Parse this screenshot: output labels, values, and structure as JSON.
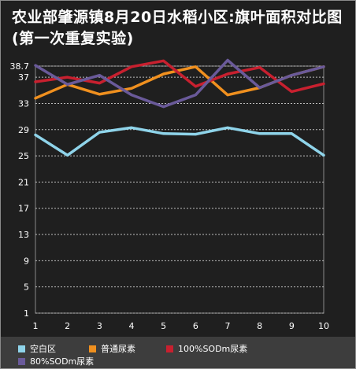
{
  "title": "农业部肇源镇8月20日水稻小区:旗叶面积对比图(第一次重复实验)",
  "chart_data": {
    "type": "line",
    "title": "农业部肇源镇8月20日水稻小区:旗叶面积对比图(第一次重复实验)",
    "x": [
      1,
      2,
      3,
      4,
      5,
      6,
      7,
      8,
      9,
      10
    ],
    "y_ticks": [
      "1",
      "5",
      "9",
      "13",
      "17",
      "21",
      "25",
      "29",
      "33",
      "37",
      "38.7"
    ],
    "y_tick_values": [
      1,
      5,
      9,
      13,
      17,
      21,
      25,
      29,
      33,
      37,
      38.7
    ],
    "ylim": [
      1,
      38.7
    ],
    "grid": true,
    "legend_position": "bottom",
    "series": [
      {
        "name": "空白区",
        "color": "#8fd4ea",
        "values": [
          28.2,
          25.1,
          28.6,
          29.3,
          28.4,
          28.3,
          29.3,
          28.4,
          28.4,
          25.1
        ]
      },
      {
        "name": "普通尿素",
        "color": "#f0901f",
        "values": [
          33.8,
          35.9,
          34.4,
          35.3,
          37.5,
          38.6,
          34.3,
          35.4,
          37.3,
          38.6
        ]
      },
      {
        "name": "100%SODm尿素",
        "color": "#c8202f",
        "values": [
          36.3,
          37.0,
          36.1,
          38.6,
          39.5,
          35.6,
          37.5,
          38.5,
          34.8,
          36.0
        ]
      },
      {
        "name": "80%SODm尿素",
        "color": "#6a5a9a",
        "values": [
          38.8,
          35.9,
          37.3,
          34.3,
          32.5,
          34.3,
          39.6,
          35.4,
          37.3,
          38.6
        ]
      }
    ]
  }
}
